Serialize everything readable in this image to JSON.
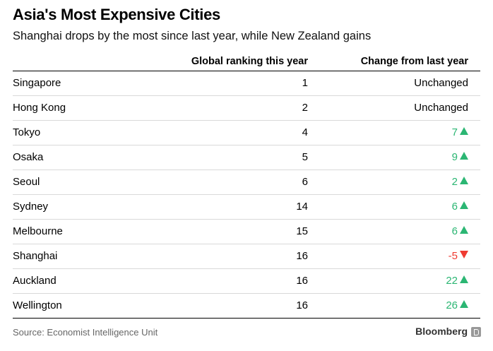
{
  "header": {
    "title": "Asia's Most Expensive Cities",
    "subtitle": "Shanghai drops by the most since last year, while New Zealand gains"
  },
  "chart_data": {
    "type": "table",
    "title": "Asia's Most Expensive Cities",
    "subtitle": "Shanghai drops by the most since last year, while New Zealand gains",
    "columns": [
      "",
      "Global ranking this year",
      "Change from last year"
    ],
    "rows": [
      {
        "city": "Singapore",
        "rank": "1",
        "change": "Unchanged",
        "direction": "same"
      },
      {
        "city": "Hong Kong",
        "rank": "2",
        "change": "Unchanged",
        "direction": "same"
      },
      {
        "city": "Tokyo",
        "rank": "4",
        "change": "7",
        "direction": "up"
      },
      {
        "city": "Osaka",
        "rank": "5",
        "change": "9",
        "direction": "up"
      },
      {
        "city": "Seoul",
        "rank": "6",
        "change": "2",
        "direction": "up"
      },
      {
        "city": "Sydney",
        "rank": "14",
        "change": "6",
        "direction": "up"
      },
      {
        "city": "Melbourne",
        "rank": "15",
        "change": "6",
        "direction": "up"
      },
      {
        "city": "Shanghai",
        "rank": "16",
        "change": "-5",
        "direction": "down"
      },
      {
        "city": "Auckland",
        "rank": "16",
        "change": "22",
        "direction": "up"
      },
      {
        "city": "Wellington",
        "rank": "16",
        "change": "26",
        "direction": "up"
      }
    ]
  },
  "colors": {
    "up": "#2bb673",
    "down": "#ef3b32"
  },
  "footer": {
    "source": "Source: Economist Intelligence Unit",
    "brand": "Bloomberg"
  }
}
